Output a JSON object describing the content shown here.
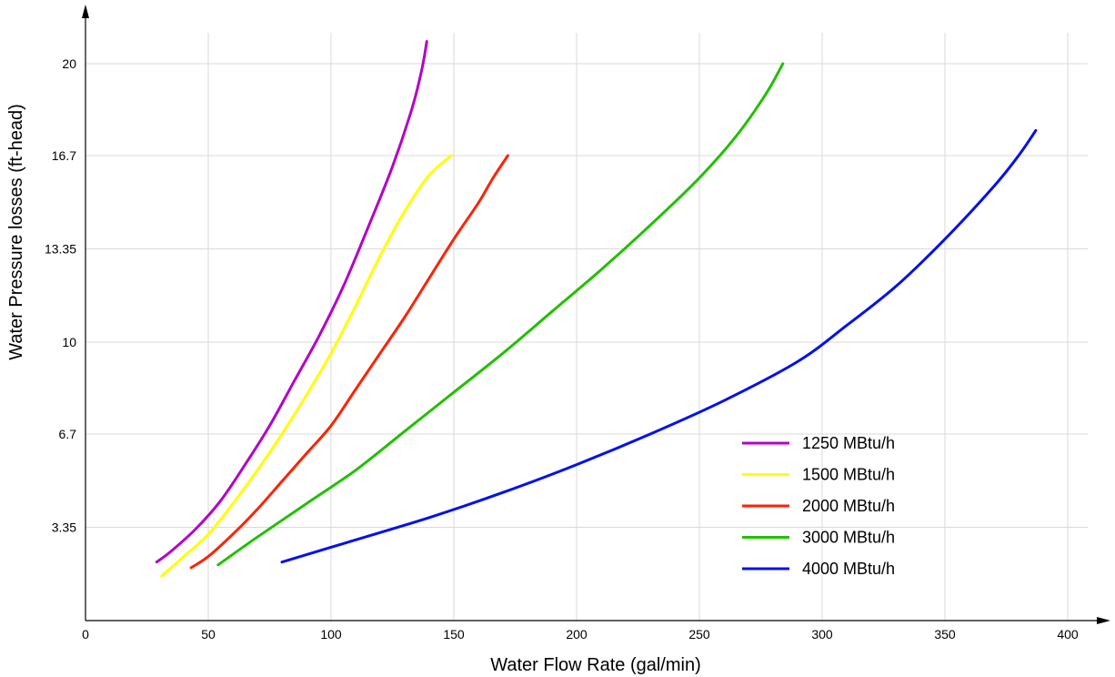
{
  "chart_data": {
    "type": "line",
    "title": "",
    "xlabel": "Water Flow Rate (gal/min)",
    "ylabel": "Water Pressure losses (ft-head)",
    "xlim": [
      0,
      420
    ],
    "ylim": [
      0,
      21
    ],
    "x_ticks": [
      0,
      50,
      100,
      150,
      200,
      250,
      300,
      350,
      400
    ],
    "x_tick_labels": [
      "0",
      "50",
      "100",
      "150",
      "200",
      "250",
      "300",
      "350",
      "400"
    ],
    "y_ticks": [
      3.35,
      6.7,
      10,
      13.35,
      16.7,
      20
    ],
    "y_tick_labels": [
      "3.35",
      "6.7",
      "10",
      "13.35",
      "16.7",
      "20"
    ],
    "grid": true,
    "legend_position": "bottom-right",
    "series": [
      {
        "name": "1250 MBtu/h",
        "color": "#b400c8",
        "points": [
          [
            29,
            2.1
          ],
          [
            35,
            2.5
          ],
          [
            45,
            3.3
          ],
          [
            55,
            4.3
          ],
          [
            65,
            5.6
          ],
          [
            75,
            7.0
          ],
          [
            85,
            8.6
          ],
          [
            95,
            10.2
          ],
          [
            105,
            12.0
          ],
          [
            115,
            14.1
          ],
          [
            125,
            16.3
          ],
          [
            133,
            18.4
          ],
          [
            137,
            19.8
          ],
          [
            139,
            20.8
          ]
        ]
      },
      {
        "name": "1500 MBtu/h",
        "color": "#ffff00",
        "points": [
          [
            31,
            1.6
          ],
          [
            40,
            2.3
          ],
          [
            50,
            3.1
          ],
          [
            60,
            4.2
          ],
          [
            70,
            5.4
          ],
          [
            80,
            6.7
          ],
          [
            90,
            8.1
          ],
          [
            100,
            9.6
          ],
          [
            110,
            11.3
          ],
          [
            120,
            13.1
          ],
          [
            130,
            14.7
          ],
          [
            140,
            16.0
          ],
          [
            149,
            16.7
          ]
        ]
      },
      {
        "name": "2000 MBtu/h",
        "color": "#ff2200",
        "points": [
          [
            43,
            1.9
          ],
          [
            50,
            2.3
          ],
          [
            60,
            3.1
          ],
          [
            70,
            4.0
          ],
          [
            80,
            5.0
          ],
          [
            90,
            6.0
          ],
          [
            100,
            7.0
          ],
          [
            110,
            8.3
          ],
          [
            120,
            9.6
          ],
          [
            130,
            10.9
          ],
          [
            140,
            12.3
          ],
          [
            150,
            13.7
          ],
          [
            160,
            15.0
          ],
          [
            166,
            15.9
          ],
          [
            172,
            16.7
          ]
        ]
      },
      {
        "name": "3000 MBtu/h",
        "color": "#22c000",
        "points": [
          [
            54,
            2.0
          ],
          [
            70,
            3.0
          ],
          [
            90,
            4.2
          ],
          [
            110,
            5.4
          ],
          [
            130,
            6.8
          ],
          [
            150,
            8.2
          ],
          [
            170,
            9.6
          ],
          [
            190,
            11.1
          ],
          [
            210,
            12.6
          ],
          [
            230,
            14.2
          ],
          [
            250,
            15.9
          ],
          [
            265,
            17.4
          ],
          [
            277,
            18.9
          ],
          [
            284,
            20.0
          ]
        ]
      },
      {
        "name": "4000 MBtu/h",
        "color": "#0010f0",
        "points": [
          [
            80,
            2.1
          ],
          [
            110,
            2.9
          ],
          [
            140,
            3.7
          ],
          [
            170,
            4.6
          ],
          [
            200,
            5.6
          ],
          [
            230,
            6.7
          ],
          [
            260,
            7.9
          ],
          [
            290,
            9.3
          ],
          [
            310,
            10.6
          ],
          [
            330,
            12.0
          ],
          [
            350,
            13.7
          ],
          [
            370,
            15.6
          ],
          [
            380,
            16.7
          ],
          [
            387,
            17.6
          ]
        ]
      }
    ]
  }
}
